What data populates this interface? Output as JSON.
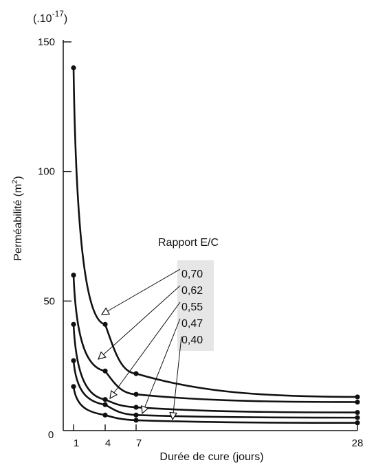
{
  "chart_data": {
    "type": "line",
    "scale_note": "(.10",
    "scale_exp": "-17",
    "scale_close": ")",
    "xlabel": "Durée de cure (jours)",
    "ylabel_main": "Perméabilité  (m",
    "ylabel_exp": "2",
    "ylabel_close": ")",
    "y_origin_label": "0",
    "yticks": [
      "50",
      "100",
      "150"
    ],
    "xticks": [
      "1",
      "4",
      "7",
      "28"
    ],
    "ylim": [
      0,
      150
    ],
    "legend_title": "Rapport E/C",
    "series": [
      {
        "name": "0,70",
        "x": [
          1,
          4,
          7,
          28
        ],
        "y": [
          140,
          41,
          22,
          13
        ]
      },
      {
        "name": "0,62",
        "x": [
          1,
          4,
          7,
          28
        ],
        "y": [
          60,
          23,
          14,
          11
        ]
      },
      {
        "name": "0,55",
        "x": [
          1,
          4,
          7,
          28
        ],
        "y": [
          41,
          12,
          9,
          7
        ]
      },
      {
        "name": "0,47",
        "x": [
          1,
          4,
          7,
          28
        ],
        "y": [
          27,
          10,
          6,
          5
        ]
      },
      {
        "name": "0,40",
        "x": [
          1,
          4,
          7,
          28
        ],
        "y": [
          17,
          6,
          4,
          3
        ]
      }
    ]
  }
}
